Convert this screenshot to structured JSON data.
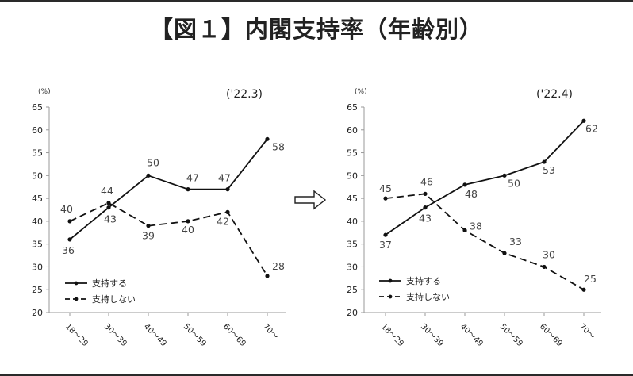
{
  "title": "【図１】内閣支持率（年齢別）",
  "arrow": "⇨",
  "chart_data": [
    {
      "type": "line",
      "title": "('22.3)",
      "unit": "(%)",
      "ylim": [
        20,
        65
      ],
      "yticks": [
        "20",
        "25",
        "30",
        "35",
        "40",
        "45",
        "50",
        "55",
        "60",
        "65"
      ],
      "categories": [
        "18～29",
        "30～39",
        "40～49",
        "50～59",
        "60～69",
        "70～"
      ],
      "series": [
        {
          "name": "支持する",
          "values": [
            36,
            43,
            50,
            47,
            47,
            58
          ],
          "labels": [
            "36",
            "43",
            "50",
            "47",
            "47",
            "58"
          ],
          "dash": "solid",
          "color": "#111111"
        },
        {
          "name": "支持しない",
          "values": [
            40,
            44,
            39,
            40,
            42,
            28
          ],
          "labels": [
            "40",
            "44",
            "39",
            "40",
            "42",
            "28"
          ],
          "dash": "dashed",
          "color": "#111111"
        }
      ],
      "legend": "bottom-left",
      "grid": false
    },
    {
      "type": "line",
      "title": "('22.4)",
      "unit": "(%)",
      "ylim": [
        20,
        65
      ],
      "yticks": [
        "20",
        "25",
        "30",
        "35",
        "40",
        "45",
        "50",
        "55",
        "60",
        "65"
      ],
      "categories": [
        "18～29",
        "30～39",
        "40～49",
        "50～59",
        "60～69",
        "70～"
      ],
      "series": [
        {
          "name": "支持する",
          "values": [
            37,
            43,
            48,
            50,
            53,
            62
          ],
          "labels": [
            "37",
            "43",
            "48",
            "50",
            "53",
            "62"
          ],
          "dash": "solid",
          "color": "#111111"
        },
        {
          "name": "支持しない",
          "values": [
            45,
            46,
            38,
            33,
            30,
            25
          ],
          "labels": [
            "45",
            "46",
            "38",
            "33",
            "30",
            "25"
          ],
          "dash": "dashed",
          "color": "#111111"
        }
      ],
      "legend": "bottom-left",
      "grid": false
    }
  ]
}
